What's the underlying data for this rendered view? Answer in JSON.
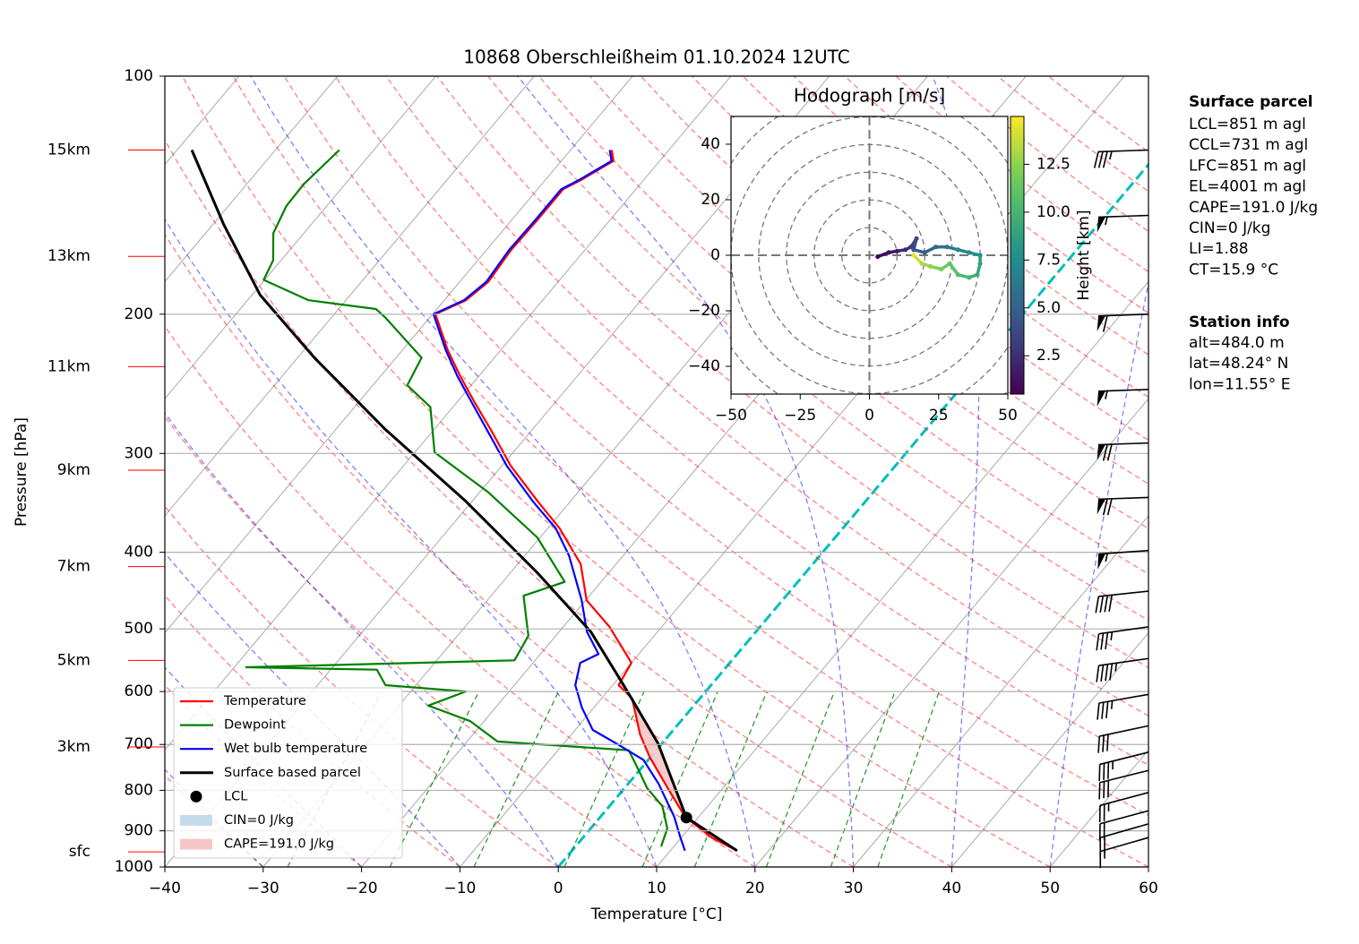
{
  "chart_data": [
    {
      "type": "skewt",
      "title": "10868 Oberschleißheim 01.10.2024 12UTC",
      "xlabel": "Temperature [°C]",
      "ylabel": "Pressure [hPa]",
      "xlim": [
        -40,
        60
      ],
      "xticks": [
        {
          "value": -40,
          "label": "−40"
        },
        {
          "value": -30,
          "label": "−30"
        },
        {
          "value": -20,
          "label": "−20"
        },
        {
          "value": -10,
          "label": "−10"
        },
        0,
        10,
        20,
        30,
        40,
        50,
        60
      ],
      "ylim": [
        1000,
        100
      ],
      "yticks": [
        100,
        200,
        300,
        400,
        500,
        600,
        700,
        800,
        900,
        1000
      ],
      "log_y": true,
      "grid": true,
      "height_ticks": [
        {
          "value": 124,
          "label": "15km"
        },
        {
          "value": 169,
          "label": "13km"
        },
        {
          "value": 233,
          "label": "11km"
        },
        {
          "value": 315,
          "label": "9km"
        },
        {
          "value": 417,
          "label": "7km"
        },
        {
          "value": 548,
          "label": "5km"
        },
        {
          "value": 705,
          "label": "3km"
        },
        {
          "value": 957,
          "label": "sfc"
        }
      ],
      "series": [
        {
          "name": "Temperature",
          "color": "#ff0000",
          "pressure": [
            954,
            918,
            864,
            795,
            726,
            680,
            612,
            589,
            552,
            497,
            460,
            414,
            373,
            345,
            311,
            280,
            259,
            240,
            222,
            200,
            192,
            182,
            166,
            152,
            139,
            135,
            128,
            124
          ],
          "values": [
            16.8,
            13.1,
            8.6,
            4.4,
            -0.1,
            -3.0,
            -6.9,
            -9.4,
            -10.0,
            -15.3,
            -19.9,
            -23.6,
            -28.8,
            -33.3,
            -39.1,
            -44.2,
            -48.1,
            -51.8,
            -55.4,
            -59.7,
            -57.8,
            -57.1,
            -57.5,
            -57.4,
            -57.4,
            -56.3,
            -54.7,
            -55.8
          ]
        },
        {
          "name": "Dewpoint",
          "color": "#008000",
          "pressure": [
            942,
            894,
            838,
            795,
            751,
            712,
            694,
            654,
            625,
            600,
            589,
            563,
            559,
            548,
            510,
            454,
            436,
            383,
            336,
            299,
            262,
            246,
            227,
            202,
            197,
            192,
            181,
            171,
            158,
            146,
            137,
            124
          ],
          "values": [
            8.7,
            7.8,
            5.4,
            2.3,
            -0.3,
            -2.8,
            -16.9,
            -21.4,
            -27.0,
            -24.4,
            -33.1,
            -35.3,
            -48.8,
            -22.1,
            -22.8,
            -26.7,
            -23.7,
            -30.3,
            -39.1,
            -48.0,
            -52.3,
            -56.5,
            -57.4,
            -64.5,
            -66.2,
            -73.8,
            -80.1,
            -80.8,
            -83.1,
            -84.1,
            -84.2,
            -83.5
          ]
        },
        {
          "name": "Wet bulb temperature",
          "color": "#0000ff",
          "pressure": [
            954,
            918,
            864,
            785,
            732,
            700,
            671,
            629,
            589,
            552,
            538,
            504,
            460,
            404,
            373,
            345,
            311,
            280,
            259,
            240,
            222,
            200,
            192,
            182,
            166,
            152,
            139,
            135,
            128,
            124
          ],
          "values": [
            11.5,
            9.9,
            7.5,
            3.1,
            -0.5,
            -4.4,
            -8.2,
            -11.2,
            -13.8,
            -15.2,
            -14.1,
            -17.2,
            -20.4,
            -25.5,
            -29.2,
            -33.8,
            -39.5,
            -44.6,
            -48.4,
            -52.1,
            -55.6,
            -59.9,
            -58.0,
            -57.3,
            -57.7,
            -57.6,
            -57.6,
            -56.5,
            -54.9,
            -56.0
          ]
        },
        {
          "name": "Surface based parcel",
          "color": "#000000",
          "pressure": [
            954,
            866,
            698,
            597,
            504,
            425,
            345,
            280,
            227,
            189,
            154,
            124
          ],
          "values": [
            16.8,
            8.8,
            -0.4,
            -8.2,
            -16.8,
            -27.2,
            -40.6,
            -54.9,
            -68.3,
            -79.2,
            -88.9,
            -98.5
          ]
        }
      ],
      "lcl": {
        "name": "LCL",
        "pressure": 866,
        "temperature": 8.8,
        "color": "#000000"
      },
      "cin": {
        "name": "CIN=0 J/kg",
        "color": "#c6dbea"
      },
      "cape": {
        "name": "CAPE=191.0 J/kg",
        "color": "#f6c6c6"
      },
      "freezing_color": "#00bfbf",
      "legend": "lower left",
      "wind": {
        "pressure": [
          124,
          150,
          200,
          249,
          291,
          341,
          398,
          448,
          497,
          545,
          605,
          663,
          716,
          755,
          805,
          849,
          882,
          918
        ],
        "speed": [
          35,
          55,
          60,
          55,
          70,
          70,
          55,
          40,
          35,
          45,
          35,
          30,
          35,
          30,
          25,
          20,
          20,
          15
        ],
        "direction": [
          268,
          268,
          268,
          268,
          268,
          268,
          266,
          264,
          262,
          262,
          260,
          258,
          256,
          256,
          255,
          255,
          254,
          254
        ]
      }
    },
    {
      "type": "hodograph",
      "title": "Hodograph [m/s]",
      "xlim": [
        -50,
        50
      ],
      "xticks": [
        {
          "value": -50,
          "label": "−50"
        },
        {
          "value": -25,
          "label": "−25"
        },
        0,
        25,
        50
      ],
      "ylim": [
        -50,
        50
      ],
      "yticks": [
        {
          "value": -40,
          "label": "−40"
        },
        {
          "value": -20,
          "label": "−20"
        },
        0,
        20,
        40
      ],
      "u": [
        3,
        7,
        10,
        13,
        15,
        17,
        16,
        20,
        24,
        28,
        32,
        36,
        40,
        40,
        39,
        36,
        32,
        29,
        26,
        22,
        19,
        16
      ],
      "v": [
        -0.5,
        1,
        1.5,
        2,
        3,
        6,
        2,
        1,
        3,
        3,
        2,
        1,
        0,
        -3,
        -7,
        -8,
        -7,
        -3,
        -5,
        -4,
        -3,
        0
      ],
      "height": [
        0.5,
        1.1,
        1.7,
        2.4,
        3.0,
        3.6,
        4.3,
        4.9,
        5.5,
        6.2,
        6.8,
        7.4,
        8.1,
        8.7,
        9.3,
        10.0,
        10.6,
        11.3,
        11.9,
        12.5,
        13.2,
        14.5
      ],
      "cmap": "viridis",
      "colorbar": {
        "label": "Height [km]",
        "lim": [
          0.5,
          15.0
        ],
        "ticks": [
          2.5,
          {
            "value": 5,
            "label": "5.0"
          },
          7.5,
          {
            "value": 10,
            "label": "10.0"
          },
          12.5
        ]
      }
    }
  ],
  "info": {
    "parcel_title": "Surface parcel",
    "parcel_lines": [
      "LCL=851 m agl",
      "CCL=731 m agl",
      "LFC=851 m agl",
      "EL=4001 m agl",
      "CAPE=191.0 J/kg",
      "CIN=0 J/kg",
      "LI=1.88",
      "CT=15.9 °C"
    ],
    "station_title": "Station info",
    "station_lines": [
      "alt=484.0 m",
      "lat=48.24° N",
      "lon=11.55° E"
    ]
  }
}
